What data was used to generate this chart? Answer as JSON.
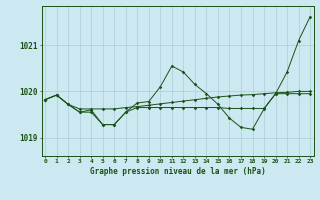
{
  "title": "Graphe pression niveau de la mer (hPa)",
  "bg_color": "#cce8f0",
  "grid_color": "#aaccdd",
  "line_color": "#1a5218",
  "x_labels": [
    "0",
    "1",
    "2",
    "3",
    "4",
    "5",
    "6",
    "7",
    "8",
    "9",
    "10",
    "11",
    "12",
    "13",
    "14",
    "15",
    "16",
    "17",
    "18",
    "19",
    "20",
    "21",
    "22",
    "23"
  ],
  "ylim": [
    1018.6,
    1021.85
  ],
  "yticks": [
    1019,
    1020,
    1021
  ],
  "series": {
    "line1": [
      1019.82,
      1019.92,
      1019.72,
      1019.62,
      1019.62,
      1019.62,
      1019.62,
      1019.65,
      1019.67,
      1019.7,
      1019.73,
      1019.76,
      1019.79,
      1019.82,
      1019.85,
      1019.88,
      1019.9,
      1019.92,
      1019.93,
      1019.95,
      1019.97,
      1019.98,
      1020.0,
      1020.0
    ],
    "line2": [
      1019.82,
      1019.92,
      1019.72,
      1019.55,
      1019.55,
      1019.28,
      1019.28,
      1019.55,
      1019.65,
      1019.65,
      1019.65,
      1019.65,
      1019.65,
      1019.65,
      1019.65,
      1019.65,
      1019.63,
      1019.63,
      1019.63,
      1019.63,
      1019.95,
      1019.95,
      1019.95,
      1019.95
    ],
    "line3": [
      1019.82,
      1019.92,
      1019.72,
      1019.55,
      1019.6,
      1019.28,
      1019.28,
      1019.55,
      1019.75,
      1019.78,
      1020.1,
      1020.55,
      1020.42,
      1020.15,
      1019.95,
      1019.72,
      1019.42,
      1019.22,
      1019.18,
      1019.62,
      1019.95,
      1020.42,
      1021.1,
      1021.62
    ]
  }
}
